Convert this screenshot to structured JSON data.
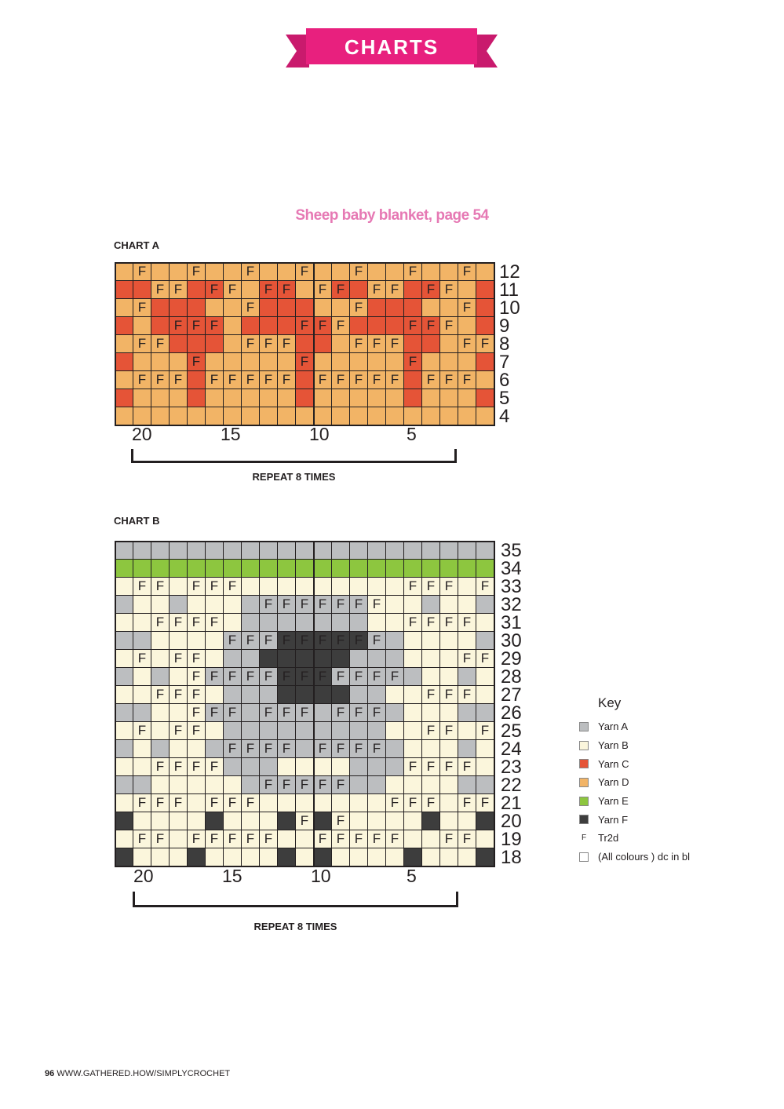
{
  "header": {
    "banner_text": "CHARTS",
    "banner_color": "#e8207e"
  },
  "subtitle": "Sheep baby blanket, page 54",
  "colors": {
    "A": "#bcbec0",
    "B": "#fbf6dc",
    "C": "#e55437",
    "D": "#f2b466",
    "E": "#8dc63f",
    "F": "#3d3d3d"
  },
  "chart_a": {
    "label": "CHART A",
    "rows_top_to_bottom": [
      {
        "n": "12",
        "colors": "DDDDDDDDDDDDDDDDDDDDD",
        "f": ".F..F..F..F..F..F..F."
      },
      {
        "n": "11",
        "colors": "CCDDCCDDCCDDCCDDCCDDC",
        "f": "..FF.FF.FF.FF.FF.FF.."
      },
      {
        "n": "10",
        "colors": "DDCCCDDDCCCDDDCCCDDDC",
        "f": ".F.....F.....F.....F."
      },
      {
        "n": "9",
        "colors": "CDCCCCDCCCCCDCCCCCDDC",
        "f": "...FFF....FFF...FFF.."
      },
      {
        "n": "8",
        "colors": "DDDCCCDDDDCCDDDDCCDDD",
        "f": ".FF....FFF...FFF...FF"
      },
      {
        "n": "7",
        "colors": "CDDDCDDDDDCDDDDDCDDDC",
        "f": "....F.....F.....F...."
      },
      {
        "n": "6",
        "colors": "DDDDCDDDDDCDDDDDCDDDD",
        "f": ".FFF.FFFFF.FFFFF.FFF."
      },
      {
        "n": "5",
        "colors": "CDDDCDDDDDCDDDDDCDDDC",
        "f": "....................."
      },
      {
        "n": "4",
        "colors": "DDDDDDDDDDDDDDDDDDDDD",
        "f": "....................."
      }
    ],
    "col_labels": [
      "20",
      "15",
      "10",
      "5"
    ],
    "repeat": "REPEAT 8 TIMES"
  },
  "chart_b": {
    "label": "CHART B",
    "rows_top_to_bottom": [
      {
        "n": "35",
        "colors": "AAAAAAAAAAAAAAAAAAAAA",
        "f": "....................."
      },
      {
        "n": "34",
        "colors": "EEEEEEEEEEEEEEEEEEEEE",
        "f": "....................."
      },
      {
        "n": "33",
        "colors": "BBBBBBBBBBBBBBBBBBBBB",
        "f": ".FF.FFF.........FFF.FF"
      },
      {
        "n": "32",
        "colors": "ABBABBBAAAAAAABBBABBA",
        "f": "........FFFFFFF......"
      },
      {
        "n": "31",
        "colors": "BBBBBBBAAAAAAABBBBBBB",
        "f": "..FFFF..........FFFF."
      },
      {
        "n": "30",
        "colors": "AABBBBAAAFFFFFAABBBBA",
        "f": "......FFFFFFFFF......"
      },
      {
        "n": "29",
        "colors": "BBBBBBAAFFFFFAAABBBBB",
        "f": ".F.FF..............FF.F"
      },
      {
        "n": "28",
        "colors": "ABABBAAAAFFFAAAAABBAB",
        "f": "....FFFFFFFFFFFF....."
      },
      {
        "n": "27",
        "colors": "BBBBBBAAAFFFFAABBBBBB",
        "f": "..FFF............FFF.."
      },
      {
        "n": "26",
        "colors": "AABBBAAAAAAAAAAABBBAA",
        "f": "....FFF.FFF.FFF......"
      },
      {
        "n": "25",
        "colors": "BBBBBBAAAAAAAAABBBBBB",
        "f": ".F.FF............FF.F"
      },
      {
        "n": "24",
        "colors": "ABABBAAAAAAAAAAABBBAB",
        "f": "......FFFF.FFFF......"
      },
      {
        "n": "23",
        "colors": "BBBBBBAAABBBBAAABBBBB",
        "f": "..FFFF..........FFFF."
      },
      {
        "n": "22",
        "colors": "AABBBBBAAAAAAAABBBBAA",
        "f": "........FFFFF........"
      },
      {
        "n": "21",
        "colors": "BBBBBBBBBBBBBBBBBBBBB",
        "f": ".FFF.FFF.......FFF.FFF"
      },
      {
        "n": "20",
        "colors": "FBBBBFBBBFBFBBBBBFBBF",
        "f": "..........F.F........."
      },
      {
        "n": "19",
        "colors": "BBBBBBBBBBBBBBBBBBBBB",
        "f": ".FF.FFFFF..FFFFF..FF."
      },
      {
        "n": "18",
        "colors": "FBBBFBBBBFBFBBBBFBBBF",
        "f": "....................."
      }
    ],
    "col_labels": [
      "20",
      "15",
      "10",
      "5"
    ],
    "repeat": "REPEAT 8 TIMES"
  },
  "key": {
    "title": "Key",
    "items": [
      {
        "swatch": "A",
        "label": "Yarn A"
      },
      {
        "swatch": "B",
        "label": "Yarn B"
      },
      {
        "swatch": "C",
        "label": "Yarn C"
      },
      {
        "swatch": "D",
        "label": "Yarn D"
      },
      {
        "swatch": "E",
        "label": "Yarn E"
      },
      {
        "swatch": "F",
        "label": "Yarn F"
      },
      {
        "swatch": "symbol",
        "symbol": "F",
        "label": "Tr2d"
      },
      {
        "swatch": "white",
        "label": "(All colours ) dc in bl"
      }
    ]
  },
  "footer": {
    "page": "96",
    "url": "WWW.GATHERED.HOW/SIMPLYCROCHET"
  }
}
